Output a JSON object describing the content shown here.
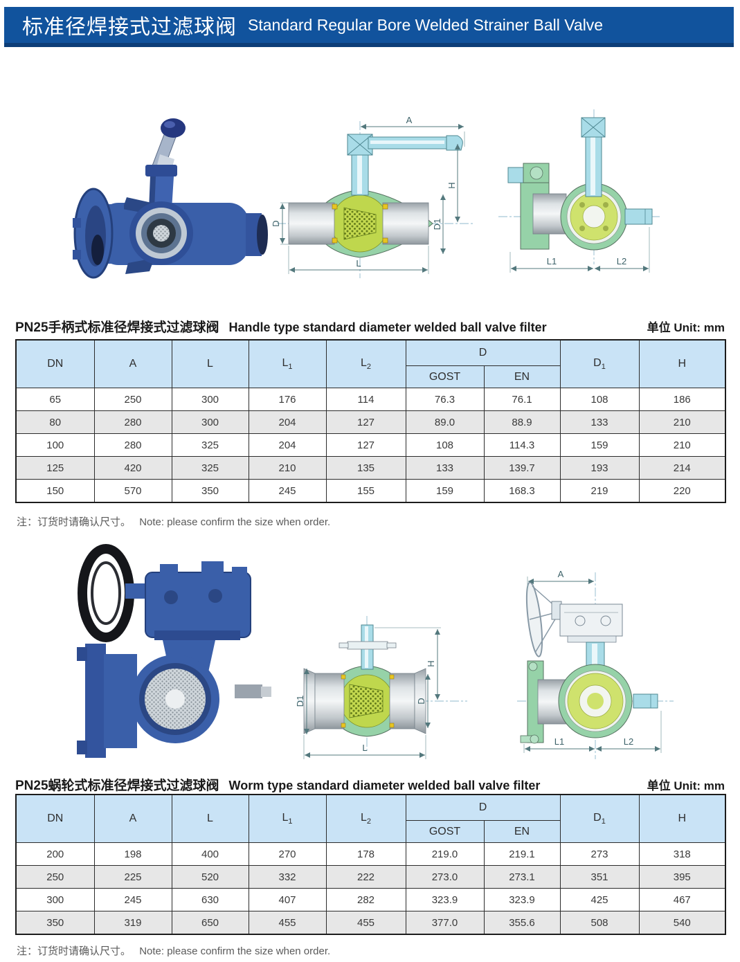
{
  "header": {
    "title_zh": "标准径焊接式过滤球阀",
    "title_en": "Standard Regular Bore Welded Strainer Ball Valve"
  },
  "table_head": {
    "dn": "DN",
    "a": "A",
    "l": "L",
    "l1_base": "L",
    "l1_sub": "1",
    "l2_base": "L",
    "l2_sub": "2",
    "d": "D",
    "gost": "GOST",
    "en": "EN",
    "d1_base": "D",
    "d1_sub": "1",
    "h": "H"
  },
  "sections": [
    {
      "title_zh": "PN25手柄式标准径焊接式过滤球阀",
      "title_en": "Handle type standard diameter welded ball valve filter",
      "unit": "单位 Unit: mm",
      "table_rows": [
        [
          "65",
          "250",
          "300",
          "176",
          "114",
          "76.3",
          "76.1",
          "108",
          "186"
        ],
        [
          "80",
          "280",
          "300",
          "204",
          "127",
          "89.0",
          "88.9",
          "133",
          "210"
        ],
        [
          "100",
          "280",
          "325",
          "204",
          "127",
          "108",
          "114.3",
          "159",
          "210"
        ],
        [
          "125",
          "420",
          "325",
          "210",
          "135",
          "133",
          "139.7",
          "193",
          "214"
        ],
        [
          "150",
          "570",
          "350",
          "245",
          "155",
          "159",
          "168.3",
          "219",
          "220"
        ]
      ],
      "note_zh": "注：订货时请确认尺寸。",
      "note_en": "Note: please confirm the size when order."
    },
    {
      "title_zh": "PN25蜗轮式标准径焊接式过滤球阀",
      "title_en": "Worm type standard diameter welded ball valve filter",
      "unit": "单位 Unit: mm",
      "table_rows": [
        [
          "200",
          "198",
          "400",
          "270",
          "178",
          "219.0",
          "219.1",
          "273",
          "318"
        ],
        [
          "250",
          "225",
          "520",
          "332",
          "222",
          "273.0",
          "273.1",
          "351",
          "395"
        ],
        [
          "300",
          "245",
          "630",
          "407",
          "282",
          "323.9",
          "323.9",
          "425",
          "467"
        ],
        [
          "350",
          "319",
          "650",
          "455",
          "455",
          "377.0",
          "355.6",
          "508",
          "540"
        ]
      ],
      "note_zh": "注：订货时请确认尺寸。",
      "note_en": "Note: please confirm the size when order."
    }
  ],
  "figures": {
    "handle_front": {
      "a": "A",
      "h": "H",
      "d": "D",
      "d1": "D1",
      "l": "L"
    },
    "handle_side": {
      "l1": "L1",
      "l2": "L2"
    },
    "worm_front": {
      "h": "H",
      "d1": "D1",
      "d": "D",
      "l": "L"
    },
    "worm_side": {
      "a": "A",
      "l1": "L1",
      "l2": "L2"
    }
  },
  "colors": {
    "banner_blue": "#11539d",
    "banner_underline": "#0d3e78",
    "table_header_blue": "#c9e3f6",
    "row_alt_gray": "#e7e7e7",
    "valve_photo_blue": "#3a5fa9",
    "drawing_body_green": "#96d2a8",
    "drawing_ball_yellow": "#bfd74d",
    "drawing_stem_cyan": "#a9dce8"
  }
}
